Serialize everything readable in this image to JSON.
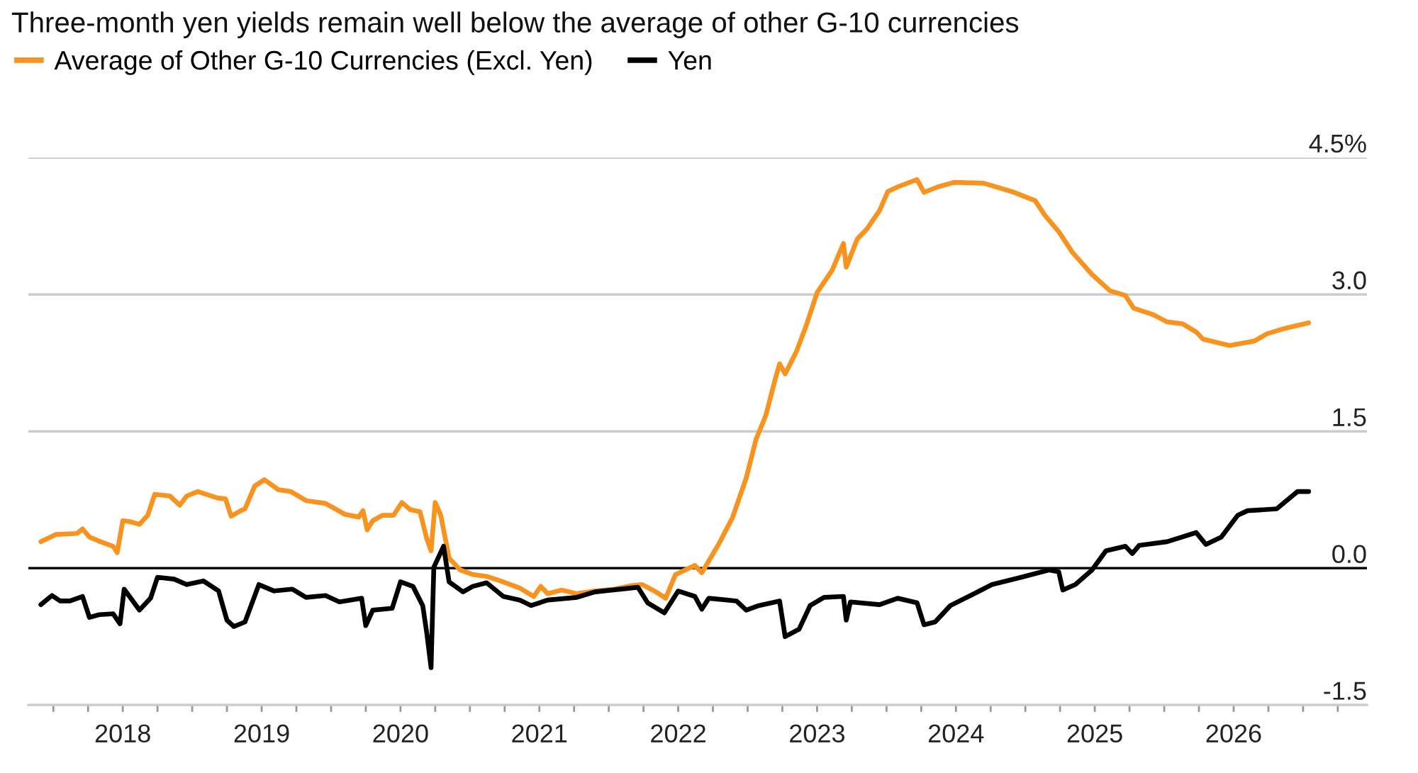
{
  "chart_data": {
    "type": "line",
    "title": "Three-month yen yields remain well below the average of other G-10 currencies",
    "series": [
      {
        "name": "Average of Other G-10 Currencies (Excl. Yen)",
        "color": "#f7931e",
        "x": [
          2017.41,
          2017.52,
          2017.67,
          2017.71,
          2017.76,
          2017.84,
          2017.93,
          2017.96,
          2018.0,
          2018.05,
          2018.12,
          2018.18,
          2018.23,
          2018.34,
          2018.41,
          2018.46,
          2018.54,
          2018.68,
          2018.74,
          2018.78,
          2018.85,
          2018.88,
          2018.95,
          2019.02,
          2019.12,
          2019.21,
          2019.32,
          2019.46,
          2019.6,
          2019.7,
          2019.73,
          2019.76,
          2019.8,
          2019.87,
          2019.95,
          2020.01,
          2020.07,
          2020.14,
          2020.19,
          2020.22,
          2020.25,
          2020.29,
          2020.35,
          2020.43,
          2020.52,
          2020.62,
          2020.72,
          2020.86,
          2020.96,
          2021.01,
          2021.06,
          2021.16,
          2021.27,
          2021.4,
          2021.54,
          2021.67,
          2021.74,
          2021.84,
          2021.91,
          2021.98,
          2022.12,
          2022.17,
          2022.29,
          2022.39,
          2022.49,
          2022.56,
          2022.63,
          2022.7,
          2022.73,
          2022.77,
          2022.85,
          2022.92,
          2023.0,
          2023.11,
          2023.19,
          2023.21,
          2023.29,
          2023.36,
          2023.45,
          2023.51,
          2023.58,
          2023.72,
          2023.77,
          2023.87,
          2023.99,
          2024.2,
          2024.4,
          2024.57,
          2024.64,
          2024.74,
          2024.84,
          2024.98,
          2025.11,
          2025.22,
          2025.28,
          2025.42,
          2025.52,
          2025.63,
          2025.73,
          2025.78,
          2025.97,
          2026.15,
          2026.24,
          2026.37,
          2026.54
        ],
        "values": [
          0.29,
          0.37,
          0.38,
          0.43,
          0.34,
          0.29,
          0.24,
          0.17,
          0.52,
          0.51,
          0.48,
          0.58,
          0.81,
          0.79,
          0.69,
          0.79,
          0.84,
          0.77,
          0.76,
          0.57,
          0.63,
          0.65,
          0.9,
          0.97,
          0.86,
          0.84,
          0.74,
          0.71,
          0.59,
          0.56,
          0.63,
          0.42,
          0.52,
          0.58,
          0.58,
          0.72,
          0.64,
          0.62,
          0.32,
          0.19,
          0.72,
          0.58,
          0.11,
          -0.02,
          -0.07,
          -0.09,
          -0.14,
          -0.22,
          -0.31,
          -0.2,
          -0.28,
          -0.24,
          -0.28,
          -0.25,
          -0.23,
          -0.19,
          -0.18,
          -0.26,
          -0.33,
          -0.07,
          0.03,
          -0.05,
          0.26,
          0.55,
          0.99,
          1.41,
          1.67,
          2.08,
          2.24,
          2.13,
          2.37,
          2.65,
          3.02,
          3.27,
          3.56,
          3.3,
          3.61,
          3.72,
          3.92,
          4.13,
          4.18,
          4.26,
          4.12,
          4.18,
          4.23,
          4.22,
          4.13,
          4.03,
          3.87,
          3.69,
          3.46,
          3.22,
          3.04,
          2.99,
          2.85,
          2.78,
          2.7,
          2.68,
          2.59,
          2.51,
          2.44,
          2.49,
          2.57,
          2.63,
          2.69
        ]
      },
      {
        "name": "Yen",
        "color": "#000000",
        "x": [
          2017.41,
          2017.49,
          2017.55,
          2017.62,
          2017.71,
          2017.76,
          2017.83,
          2017.93,
          2017.98,
          2018.01,
          2018.12,
          2018.2,
          2018.25,
          2018.37,
          2018.46,
          2018.58,
          2018.69,
          2018.75,
          2018.8,
          2018.88,
          2018.98,
          2019.09,
          2019.22,
          2019.32,
          2019.46,
          2019.56,
          2019.72,
          2019.75,
          2019.8,
          2019.94,
          2020.0,
          2020.09,
          2020.16,
          2020.19,
          2020.22,
          2020.24,
          2020.31,
          2020.35,
          2020.45,
          2020.52,
          2020.62,
          2020.74,
          2020.86,
          2020.94,
          2021.06,
          2021.27,
          2021.4,
          2021.71,
          2021.78,
          2021.9,
          2022.0,
          2022.12,
          2022.17,
          2022.22,
          2022.42,
          2022.49,
          2022.58,
          2022.73,
          2022.77,
          2022.87,
          2022.95,
          2023.05,
          2023.19,
          2023.21,
          2023.24,
          2023.45,
          2023.58,
          2023.72,
          2023.77,
          2023.85,
          2023.96,
          2024.13,
          2024.26,
          2024.47,
          2024.67,
          2024.74,
          2024.77,
          2024.86,
          2024.98,
          2025.08,
          2025.22,
          2025.27,
          2025.32,
          2025.52,
          2025.73,
          2025.8,
          2025.91,
          2026.03,
          2026.1,
          2026.31,
          2026.46,
          2026.54
        ],
        "values": [
          -0.4,
          -0.3,
          -0.36,
          -0.36,
          -0.31,
          -0.54,
          -0.51,
          -0.5,
          -0.61,
          -0.23,
          -0.46,
          -0.33,
          -0.1,
          -0.12,
          -0.18,
          -0.14,
          -0.25,
          -0.57,
          -0.64,
          -0.59,
          -0.18,
          -0.25,
          -0.23,
          -0.32,
          -0.3,
          -0.37,
          -0.33,
          -0.63,
          -0.46,
          -0.44,
          -0.15,
          -0.2,
          -0.41,
          -0.72,
          -1.09,
          0.01,
          0.24,
          -0.15,
          -0.26,
          -0.2,
          -0.16,
          -0.31,
          -0.35,
          -0.41,
          -0.35,
          -0.32,
          -0.26,
          -0.21,
          -0.38,
          -0.49,
          -0.25,
          -0.31,
          -0.45,
          -0.33,
          -0.36,
          -0.46,
          -0.41,
          -0.36,
          -0.75,
          -0.67,
          -0.41,
          -0.32,
          -0.31,
          -0.57,
          -0.37,
          -0.4,
          -0.33,
          -0.38,
          -0.62,
          -0.59,
          -0.41,
          -0.28,
          -0.18,
          -0.1,
          -0.02,
          -0.04,
          -0.24,
          -0.18,
          -0.02,
          0.19,
          0.24,
          0.16,
          0.25,
          0.29,
          0.39,
          0.26,
          0.34,
          0.58,
          0.63,
          0.65,
          0.84,
          0.84
        ]
      }
    ],
    "xlim": [
      2017.32,
      2026.96
    ],
    "xticks": [
      {
        "value": 2017.5,
        "label": null
      },
      {
        "value": 2017.75,
        "label": null
      },
      2018,
      {
        "value": 2018.25,
        "label": null
      },
      {
        "value": 2018.5,
        "label": null
      },
      {
        "value": 2018.75,
        "label": null
      },
      2019,
      {
        "value": 2019.25,
        "label": null
      },
      {
        "value": 2019.5,
        "label": null
      },
      {
        "value": 2019.75,
        "label": null
      },
      2020,
      {
        "value": 2020.25,
        "label": null
      },
      {
        "value": 2020.5,
        "label": null
      },
      {
        "value": 2020.75,
        "label": null
      },
      2021,
      {
        "value": 2021.25,
        "label": null
      },
      {
        "value": 2021.5,
        "label": null
      },
      {
        "value": 2021.75,
        "label": null
      },
      2022,
      {
        "value": 2022.25,
        "label": null
      },
      {
        "value": 2022.5,
        "label": null
      },
      {
        "value": 2022.75,
        "label": null
      },
      2023,
      {
        "value": 2023.25,
        "label": null
      },
      {
        "value": 2023.5,
        "label": null
      },
      {
        "value": 2023.75,
        "label": null
      },
      2024,
      {
        "value": 2024.25,
        "label": null
      },
      {
        "value": 2024.5,
        "label": null
      },
      {
        "value": 2024.75,
        "label": null
      },
      2025,
      {
        "value": 2025.25,
        "label": null
      },
      {
        "value": 2025.5,
        "label": null
      },
      {
        "value": 2025.75,
        "label": null
      },
      2026,
      {
        "value": 2026.25,
        "label": null
      },
      {
        "value": 2026.5,
        "label": null
      },
      {
        "value": 2026.75,
        "label": null
      }
    ],
    "ylim": [
      -1.5,
      4.5
    ],
    "yticks": [
      -1.5,
      {
        "value": 0,
        "label": "0.0"
      },
      1.5,
      {
        "value": 3,
        "label": "3.0"
      },
      {
        "value": 4.5,
        "label": "4.5%"
      }
    ],
    "ref_lines": [
      {
        "axis": "y",
        "value": 0,
        "color": "#000000"
      }
    ],
    "grid": "y",
    "legend": "top left",
    "line_style": "solid"
  }
}
